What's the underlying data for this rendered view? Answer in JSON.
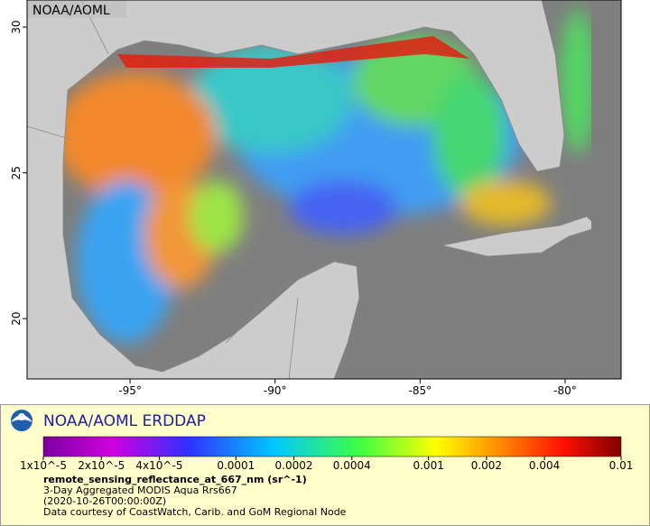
{
  "map": {
    "label": "NOAA/AOML",
    "xlim": [
      -98.55,
      -78.07
    ],
    "ylim": [
      17.93,
      30.93
    ],
    "xticks": [
      {
        "value": -95,
        "label": "-95°"
      },
      {
        "value": -90,
        "label": "-90°"
      },
      {
        "value": -85,
        "label": "-85°"
      },
      {
        "value": -80,
        "label": "-80°"
      }
    ],
    "yticks": [
      20,
      25,
      30
    ]
  },
  "legend": {
    "title": "NOAA/AOML ERDDAP",
    "colorbar": {
      "scale": "log",
      "lim": [
        1e-05,
        0.01
      ],
      "ticks": [
        {
          "value": 1e-05,
          "label": "1x10^-5"
        },
        {
          "value": 2e-05,
          "label": "2x10^-5"
        },
        {
          "value": 4e-05,
          "label": "4x10^-5"
        },
        0.0001,
        0.0002,
        0.0004,
        0.001,
        0.002,
        0.004,
        0.01
      ]
    },
    "variable": "remote_sensing_reflectance_at_667_nm (sr^-1)",
    "dataset": "3-Day Aggregated MODIS Aqua Rrs667",
    "time": "(2020-10-26T00:00:00Z)",
    "credit": "Data courtesy of CoastWatch, Carib. and GoM Regional Node"
  }
}
